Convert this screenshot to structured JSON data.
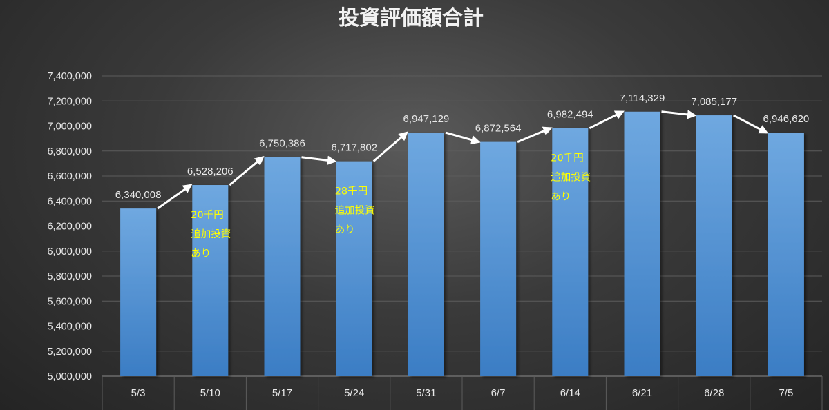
{
  "chart_data": {
    "type": "bar",
    "title": "投資評価額合計",
    "categories": [
      "5/3",
      "5/10",
      "5/17",
      "5/24",
      "5/31",
      "6/7",
      "6/14",
      "6/21",
      "6/28",
      "7/5"
    ],
    "values": [
      6340008,
      6528206,
      6750386,
      6717802,
      6947129,
      6872564,
      6982494,
      7114329,
      7085177,
      6946620
    ],
    "data_labels": [
      "6,340,008",
      "6,528,206",
      "6,750,386",
      "6,717,802",
      "6,947,129",
      "6,872,564",
      "6,982,494",
      "7,114,329",
      "7,085,177",
      "6,946,620"
    ],
    "ylim": [
      5000000,
      7400000
    ],
    "yticks": [
      5000000,
      5200000,
      5400000,
      5600000,
      5800000,
      6000000,
      6200000,
      6400000,
      6600000,
      6800000,
      7000000,
      7200000,
      7400000
    ],
    "ytick_labels": [
      "5,000,000",
      "5,200,000",
      "5,400,000",
      "5,600,000",
      "5,800,000",
      "6,000,000",
      "6,200,000",
      "6,400,000",
      "6,600,000",
      "6,800,000",
      "7,000,000",
      "7,200,000",
      "7,400,000"
    ],
    "grid": true,
    "trend_arrows": true,
    "annotations": [
      {
        "category": "5/10",
        "lines": [
          "20千円",
          "追加投資",
          "あり"
        ]
      },
      {
        "category": "5/24",
        "lines": [
          "28千円",
          "追加投資",
          "あり"
        ]
      },
      {
        "category": "6/14",
        "lines": [
          "20千円",
          "追加投資",
          "あり"
        ]
      }
    ],
    "colors": {
      "bar_top": "#6fa8e0",
      "bar_bottom": "#3b7dc4",
      "annotation": "#ffff00",
      "text": "#e8e8e8",
      "arrow": "#ffffff"
    }
  }
}
